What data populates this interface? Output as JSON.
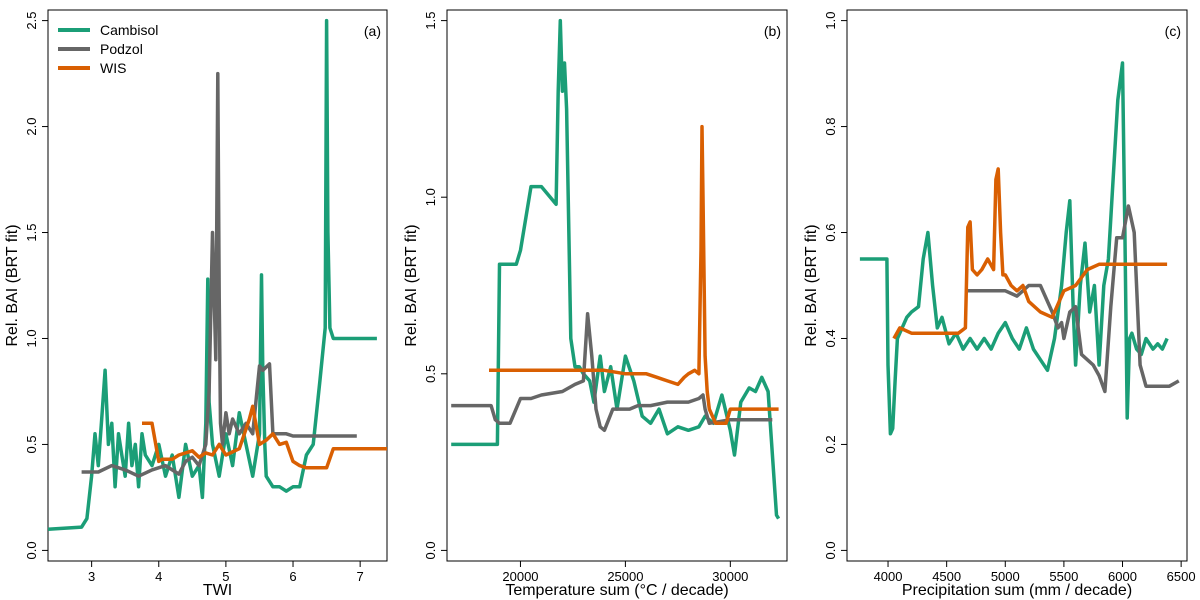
{
  "colors": {
    "Cambisol": "#1b9e77",
    "Podzol": "#666666",
    "WIS": "#d95f02"
  },
  "legend": {
    "placement": "top-left",
    "entries": [
      "Cambisol",
      "Podzol",
      "WIS"
    ]
  },
  "chart_data": [
    {
      "type": "line",
      "panel": "(a)",
      "xlabel": "TWI",
      "ylabel": "Rel. BAI (BRT fit)",
      "xlim": [
        2.35,
        7.4
      ],
      "ylim": [
        -0.05,
        2.55
      ],
      "xticks": [
        3,
        4,
        5,
        6,
        7
      ],
      "yticks": [
        0.0,
        0.5,
        1.0,
        1.5,
        2.0,
        2.5
      ],
      "ytick_labels": [
        "0.0",
        "0.5",
        "1.0",
        "1.5",
        "2.0",
        "2.5"
      ],
      "series": [
        {
          "name": "Cambisol",
          "x": [
            2.35,
            2.85,
            2.93,
            3.0,
            3.05,
            3.1,
            3.15,
            3.2,
            3.25,
            3.3,
            3.35,
            3.4,
            3.45,
            3.5,
            3.55,
            3.6,
            3.65,
            3.7,
            3.75,
            3.8,
            3.9,
            4.0,
            4.1,
            4.2,
            4.3,
            4.4,
            4.5,
            4.6,
            4.65,
            4.7,
            4.73,
            4.75,
            4.8,
            4.9,
            5.0,
            5.1,
            5.2,
            5.3,
            5.4,
            5.5,
            5.53,
            5.55,
            5.58,
            5.6,
            5.7,
            5.8,
            5.9,
            6.0,
            6.1,
            6.2,
            6.3,
            6.4,
            6.48,
            6.5,
            6.52,
            6.55,
            6.6,
            7.25
          ],
          "values": [
            0.1,
            0.11,
            0.15,
            0.35,
            0.55,
            0.4,
            0.62,
            0.85,
            0.5,
            0.6,
            0.3,
            0.55,
            0.45,
            0.35,
            0.6,
            0.4,
            0.5,
            0.3,
            0.55,
            0.45,
            0.4,
            0.5,
            0.35,
            0.45,
            0.25,
            0.5,
            0.35,
            0.4,
            0.25,
            0.6,
            1.28,
            0.7,
            0.5,
            0.35,
            0.55,
            0.4,
            0.65,
            0.5,
            0.35,
            0.55,
            1.3,
            0.85,
            0.5,
            0.35,
            0.3,
            0.3,
            0.28,
            0.3,
            0.3,
            0.45,
            0.5,
            0.8,
            1.05,
            2.5,
            1.5,
            1.05,
            1.0,
            1.0
          ]
        },
        {
          "name": "Podzol",
          "x": [
            2.85,
            3.1,
            3.3,
            3.5,
            3.7,
            3.9,
            4.1,
            4.3,
            4.4,
            4.5,
            4.6,
            4.7,
            4.75,
            4.8,
            4.85,
            4.88,
            4.9,
            4.92,
            4.95,
            5.0,
            5.05,
            5.1,
            5.2,
            5.3,
            5.4,
            5.5,
            5.55,
            5.65,
            5.7,
            5.8,
            5.9,
            6.0,
            6.95
          ],
          "values": [
            0.37,
            0.37,
            0.4,
            0.38,
            0.35,
            0.38,
            0.4,
            0.36,
            0.42,
            0.44,
            0.4,
            0.5,
            0.75,
            1.5,
            0.9,
            2.25,
            1.2,
            0.6,
            0.5,
            0.65,
            0.55,
            0.62,
            0.55,
            0.6,
            0.55,
            0.87,
            0.85,
            0.88,
            0.55,
            0.55,
            0.55,
            0.54,
            0.54
          ]
        },
        {
          "name": "WIS",
          "x": [
            3.75,
            3.9,
            4.0,
            4.05,
            4.2,
            4.3,
            4.5,
            4.6,
            4.7,
            4.8,
            4.9,
            5.0,
            5.2,
            5.35,
            5.4,
            5.5,
            5.6,
            5.7,
            5.8,
            5.9,
            6.0,
            6.1,
            6.2,
            6.5,
            6.6,
            6.7,
            7.0,
            7.4
          ],
          "values": [
            0.6,
            0.6,
            0.42,
            0.43,
            0.43,
            0.45,
            0.47,
            0.44,
            0.46,
            0.45,
            0.5,
            0.45,
            0.48,
            0.62,
            0.68,
            0.5,
            0.52,
            0.55,
            0.5,
            0.51,
            0.42,
            0.4,
            0.39,
            0.39,
            0.48,
            0.48,
            0.48,
            0.48
          ]
        }
      ]
    },
    {
      "type": "line",
      "panel": "(b)",
      "xlabel": "Temperature sum (°C / decade)",
      "ylabel": "Rel. BAI (BRT fit)",
      "xlim": [
        16500,
        32700
      ],
      "ylim": [
        -0.03,
        1.53
      ],
      "xticks": [
        20000,
        25000,
        30000
      ],
      "yticks": [
        0.0,
        0.5,
        1.0,
        1.5
      ],
      "ytick_labels": [
        "0.0",
        "0.5",
        "1.0",
        "1.5"
      ],
      "series": [
        {
          "name": "Cambisol",
          "x": [
            16700,
            18900,
            19000,
            19800,
            20000,
            20500,
            20800,
            21000,
            21700,
            21800,
            21900,
            22000,
            22100,
            22200,
            22400,
            22600,
            22800,
            23000,
            23300,
            23500,
            23800,
            24000,
            24300,
            24600,
            25000,
            25400,
            25800,
            26200,
            26600,
            27000,
            27500,
            28000,
            28500,
            28800,
            29200,
            29600,
            30000,
            30200,
            30500,
            30900,
            31200,
            31500,
            31800,
            32200,
            32300
          ],
          "values": [
            0.3,
            0.3,
            0.81,
            0.81,
            0.85,
            1.03,
            1.03,
            1.03,
            0.98,
            1.3,
            1.5,
            1.3,
            1.38,
            1.25,
            0.6,
            0.52,
            0.52,
            0.5,
            0.48,
            0.42,
            0.55,
            0.45,
            0.52,
            0.4,
            0.55,
            0.48,
            0.38,
            0.36,
            0.4,
            0.33,
            0.35,
            0.34,
            0.35,
            0.38,
            0.36,
            0.44,
            0.34,
            0.27,
            0.42,
            0.46,
            0.45,
            0.49,
            0.45,
            0.1,
            0.09
          ]
        },
        {
          "name": "Podzol",
          "x": [
            16700,
            18600,
            18800,
            19000,
            19500,
            20000,
            20500,
            21000,
            22000,
            22600,
            23000,
            23200,
            23400,
            23600,
            23800,
            24000,
            24400,
            24800,
            25200,
            25600,
            26200,
            27000,
            27600,
            28000,
            28500,
            28700,
            28800,
            29000,
            30000,
            30500,
            31000,
            31500,
            32000
          ],
          "values": [
            0.41,
            0.41,
            0.37,
            0.36,
            0.36,
            0.43,
            0.43,
            0.44,
            0.45,
            0.47,
            0.48,
            0.67,
            0.55,
            0.4,
            0.35,
            0.34,
            0.4,
            0.4,
            0.4,
            0.41,
            0.41,
            0.42,
            0.42,
            0.42,
            0.43,
            0.44,
            0.4,
            0.36,
            0.37,
            0.37,
            0.37,
            0.37,
            0.37
          ]
        },
        {
          "name": "WIS",
          "x": [
            18500,
            20000,
            22000,
            24000,
            25000,
            26000,
            26500,
            27000,
            27500,
            27800,
            28000,
            28300,
            28500,
            28600,
            28650,
            28700,
            28800,
            28900,
            29000,
            29300,
            29600,
            29800,
            30000,
            30500,
            31000,
            31500,
            32000,
            32300
          ],
          "values": [
            0.51,
            0.51,
            0.51,
            0.51,
            0.5,
            0.5,
            0.49,
            0.48,
            0.47,
            0.49,
            0.5,
            0.51,
            0.5,
            0.85,
            1.2,
            1.0,
            0.55,
            0.45,
            0.4,
            0.36,
            0.36,
            0.36,
            0.4,
            0.4,
            0.4,
            0.4,
            0.4,
            0.4
          ]
        }
      ]
    },
    {
      "type": "line",
      "panel": "(c)",
      "xlabel": "Precipitation sum (mm / decade)",
      "ylabel": "Rel. BAI (BRT fit)",
      "xlim": [
        3650,
        6550
      ],
      "ylim": [
        -0.02,
        1.02
      ],
      "xticks": [
        4000,
        4500,
        5000,
        5500,
        6000,
        6500
      ],
      "yticks": [
        0.0,
        0.2,
        0.4,
        0.6,
        0.8,
        1.0
      ],
      "ytick_labels": [
        "0.0",
        "0.2",
        "0.4",
        "0.6",
        "0.8",
        "1.0"
      ],
      "series": [
        {
          "name": "Cambisol",
          "x": [
            3760,
            3990,
            4000,
            4020,
            4040,
            4060,
            4080,
            4120,
            4160,
            4200,
            4260,
            4300,
            4340,
            4380,
            4420,
            4460,
            4520,
            4580,
            4640,
            4700,
            4760,
            4820,
            4880,
            4940,
            5000,
            5060,
            5120,
            5180,
            5240,
            5300,
            5360,
            5420,
            5480,
            5520,
            5550,
            5580,
            5600,
            5640,
            5680,
            5720,
            5760,
            5800,
            5840,
            5880,
            5920,
            5960,
            6000,
            6020,
            6040,
            6060,
            6080,
            6120,
            6160,
            6200,
            6260,
            6300,
            6340,
            6380
          ],
          "values": [
            0.55,
            0.55,
            0.35,
            0.22,
            0.23,
            0.32,
            0.4,
            0.42,
            0.44,
            0.45,
            0.46,
            0.55,
            0.6,
            0.5,
            0.42,
            0.44,
            0.39,
            0.41,
            0.38,
            0.4,
            0.38,
            0.4,
            0.38,
            0.41,
            0.43,
            0.4,
            0.38,
            0.42,
            0.38,
            0.36,
            0.34,
            0.4,
            0.5,
            0.6,
            0.66,
            0.45,
            0.35,
            0.5,
            0.58,
            0.45,
            0.5,
            0.35,
            0.5,
            0.55,
            0.7,
            0.85,
            0.92,
            0.6,
            0.25,
            0.4,
            0.41,
            0.38,
            0.37,
            0.4,
            0.38,
            0.39,
            0.38,
            0.4
          ]
        },
        {
          "name": "Podzol",
          "x": [
            4680,
            5000,
            5100,
            5150,
            5200,
            5300,
            5400,
            5450,
            5480,
            5500,
            5550,
            5600,
            5650,
            5700,
            5750,
            5800,
            5850,
            5900,
            5950,
            6000,
            6050,
            6100,
            6150,
            6200,
            6250,
            6300,
            6400,
            6480
          ],
          "values": [
            0.49,
            0.49,
            0.48,
            0.49,
            0.5,
            0.5,
            0.45,
            0.42,
            0.43,
            0.4,
            0.45,
            0.46,
            0.37,
            0.36,
            0.35,
            0.33,
            0.3,
            0.46,
            0.59,
            0.59,
            0.65,
            0.6,
            0.35,
            0.31,
            0.31,
            0.31,
            0.31,
            0.32
          ]
        },
        {
          "name": "WIS",
          "x": [
            4050,
            4100,
            4200,
            4300,
            4400,
            4500,
            4600,
            4660,
            4680,
            4700,
            4720,
            4760,
            4800,
            4850,
            4900,
            4920,
            4940,
            4960,
            4980,
            5000,
            5050,
            5100,
            5150,
            5200,
            5300,
            5400,
            5500,
            5600,
            5700,
            5800,
            5900,
            6000,
            6100,
            6200,
            6300,
            6380
          ],
          "values": [
            0.4,
            0.42,
            0.41,
            0.41,
            0.41,
            0.41,
            0.41,
            0.42,
            0.61,
            0.62,
            0.53,
            0.52,
            0.53,
            0.55,
            0.53,
            0.7,
            0.72,
            0.6,
            0.52,
            0.52,
            0.5,
            0.49,
            0.5,
            0.47,
            0.45,
            0.44,
            0.49,
            0.5,
            0.53,
            0.54,
            0.54,
            0.54,
            0.54,
            0.54,
            0.54,
            0.54
          ]
        }
      ]
    }
  ]
}
